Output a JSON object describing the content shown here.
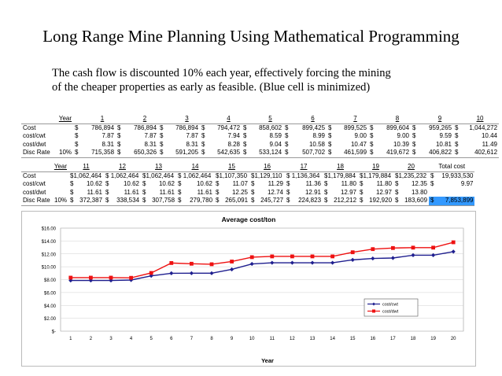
{
  "title": "Long Range Mine Planning Using Mathematical Programming",
  "description": {
    "line1": "The cash flow is discounted 10% each year, effectively forcing the mining",
    "line2": "of the cheaper properties as early as feasible.  (Blue cell is minimized)"
  },
  "table1": {
    "year_label": "Year",
    "years": [
      "1",
      "2",
      "3",
      "4",
      "5",
      "6",
      "7",
      "8",
      "9",
      "10"
    ],
    "rows": [
      {
        "label": "Cost",
        "pre": "",
        "values": [
          "786,894",
          "786,894",
          "786,894",
          "794,472",
          "858,602",
          "899,425",
          "899,525",
          "899,604",
          "959,265",
          "1,044,272"
        ]
      },
      {
        "label": "cost/cwt",
        "pre": "",
        "values": [
          "7.87",
          "7.87",
          "7.87",
          "7.94",
          "8.59",
          "8.99",
          "9.00",
          "9.00",
          "9.59",
          "10.44"
        ]
      },
      {
        "label": "cost/dwt",
        "pre": "",
        "values": [
          "8.31",
          "8.31",
          "8.31",
          "8.28",
          "9.04",
          "10.58",
          "10.47",
          "10.39",
          "10.81",
          "11.49"
        ]
      },
      {
        "label": "Disc Rate",
        "pre": "10%",
        "values": [
          "715,358",
          "650,326",
          "591,205",
          "542,635",
          "533,124",
          "507,702",
          "461,599",
          "419,672",
          "406,822",
          "402,612"
        ]
      }
    ]
  },
  "table2": {
    "year_label": "Year",
    "years": [
      "11",
      "12",
      "13",
      "14",
      "15",
      "16",
      "17",
      "18",
      "19",
      "20"
    ],
    "total_label": "Total cost",
    "rows": [
      {
        "label": "Cost",
        "pre": "",
        "values": [
          "$1,062,464",
          "$ 1,062,464",
          "$1,062,464",
          "$ 1,062,464",
          "$1,107,350",
          "$1,129,110",
          "$ 1,136,364",
          "$1,179,884",
          "$1,179,884",
          "$1,235,232"
        ],
        "total": "19,933,530"
      },
      {
        "label": "cost/cwt",
        "pre": "",
        "values": [
          "10.62",
          "10.62",
          "10.62",
          "10.62",
          "11.07",
          "11.29",
          "11.36",
          "11.80",
          "11.80",
          "12.35"
        ],
        "total": "9.97"
      },
      {
        "label": "cost/dwt",
        "pre": "",
        "values": [
          "11.61",
          "11.61",
          "11.61",
          "11.61",
          "12.25",
          "12.74",
          "12.91",
          "12.97",
          "12.97",
          "13.80"
        ],
        "total": ""
      },
      {
        "label": "Disc Rate",
        "pre": "10%",
        "values": [
          "372,387",
          "338,534",
          "307,758",
          "279,780",
          "265,091",
          "245,727",
          "224,823",
          "212,212",
          "192,920",
          "183,609"
        ],
        "total": "7,853,899"
      }
    ]
  },
  "currency_symbol": "$",
  "minimized_cell_color": "#3399ff",
  "chart_data": {
    "type": "line",
    "title": "Average cost/ton",
    "xlabel": "Year",
    "ylabel": "",
    "x": [
      1,
      2,
      3,
      4,
      5,
      6,
      7,
      8,
      9,
      10,
      11,
      12,
      13,
      14,
      15,
      16,
      17,
      18,
      19,
      20
    ],
    "ylim": [
      0,
      16
    ],
    "yticks": [
      "$-",
      "$2.00",
      "$4.00",
      "$6.00",
      "$8.00",
      "$10.00",
      "$12.00",
      "$14.00",
      "$16.00"
    ],
    "grid": true,
    "legend_position": "bottom-right",
    "series": [
      {
        "name": "cost/cwt",
        "color": "#1f1f8f",
        "marker": "diamond",
        "values": [
          7.87,
          7.87,
          7.87,
          7.94,
          8.59,
          8.99,
          9.0,
          9.0,
          9.59,
          10.44,
          10.62,
          10.62,
          10.62,
          10.62,
          11.07,
          11.29,
          11.36,
          11.8,
          11.8,
          12.35
        ]
      },
      {
        "name": "cost/dwt",
        "color": "#ee1111",
        "marker": "square",
        "values": [
          8.31,
          8.31,
          8.31,
          8.28,
          9.04,
          10.58,
          10.47,
          10.39,
          10.81,
          11.49,
          11.61,
          11.61,
          11.61,
          11.61,
          12.25,
          12.74,
          12.91,
          12.97,
          12.97,
          13.8
        ]
      }
    ]
  }
}
